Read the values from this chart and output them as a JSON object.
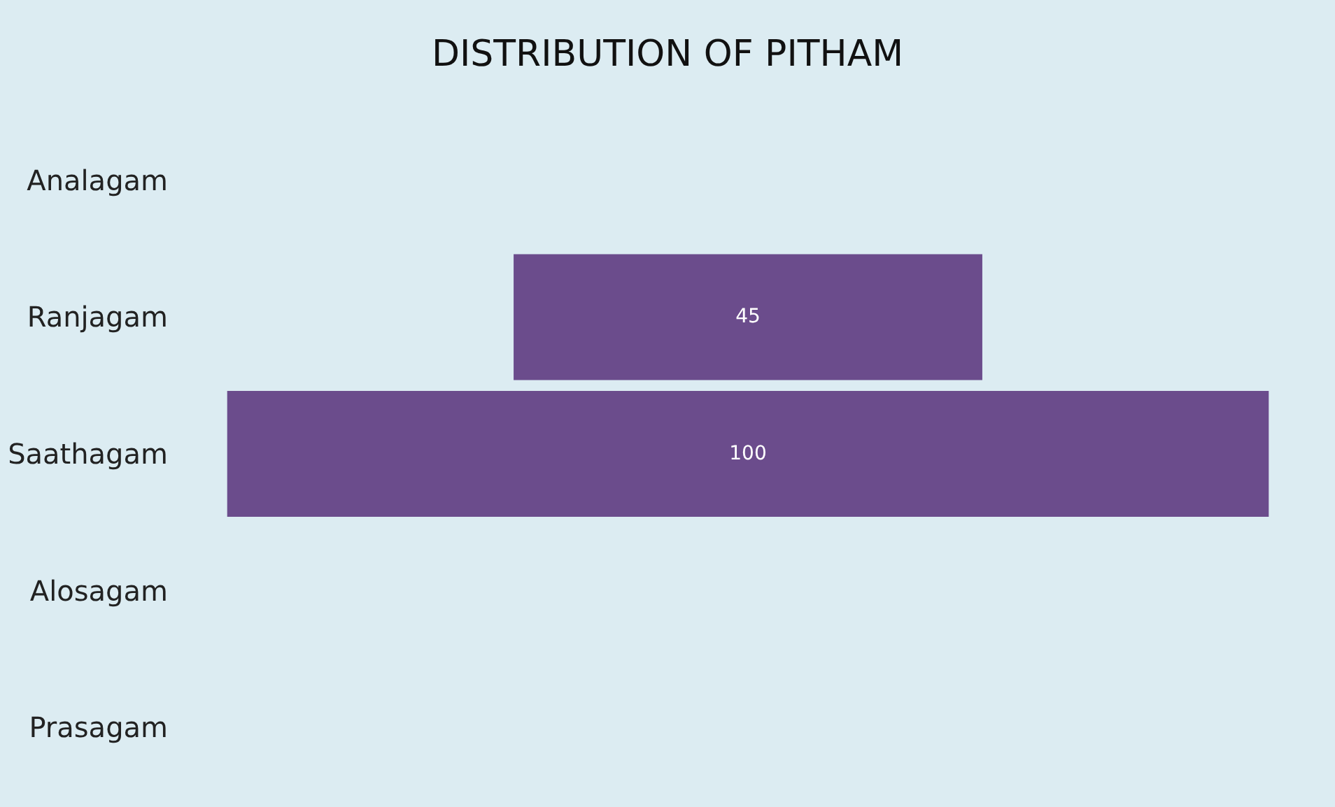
{
  "chart_data": {
    "type": "other",
    "title": "DISTRIBUTION OF PITHAM",
    "categories": [
      "Analagam",
      "Ranjagam",
      "Saathagam",
      "Alosagam",
      "Prasagam"
    ],
    "values": [
      null,
      45,
      100,
      null,
      null
    ],
    "color": "#6b4c8c",
    "data_labels": true
  }
}
